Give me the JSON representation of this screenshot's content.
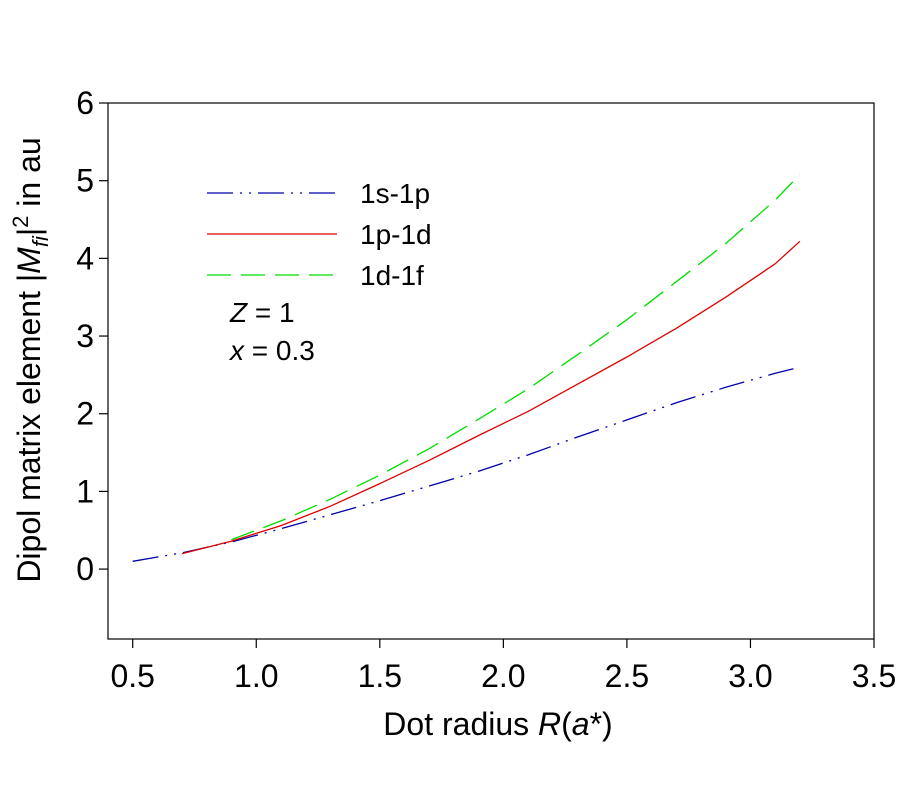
{
  "chart_data": {
    "type": "line",
    "xlabel_prefix": "Dot radius ",
    "xlabel_var": "R",
    "xlabel_paren_open": "(",
    "xlabel_unit_var": "a",
    "xlabel_suffix": "*)",
    "ylabel_prefix": "Dipol matrix element |",
    "ylabel_var": "M",
    "ylabel_sub": "fi",
    "ylabel_bar": "|",
    "ylabel_sup": "2",
    "ylabel_suffix": " in au",
    "xlim": [
      0.4,
      3.5
    ],
    "ylim": [
      -0.9,
      6.0
    ],
    "xticks": [
      0.5,
      1.0,
      1.5,
      2.0,
      2.5,
      3.0,
      3.5
    ],
    "xtick_labels": [
      "0.5",
      "1.0",
      "1.5",
      "2.0",
      "2.5",
      "3.0",
      "3.5"
    ],
    "yticks": [
      0,
      1,
      2,
      3,
      4,
      5,
      6
    ],
    "ytick_labels": [
      "0",
      "1",
      "2",
      "3",
      "4",
      "5",
      "6"
    ],
    "grid": false,
    "legend_position": "top-left",
    "series": [
      {
        "name": "1s-1p",
        "color": "#0000aa",
        "dash": "dash-dot-dot",
        "x": [
          0.5,
          0.7,
          0.9,
          1.1,
          1.3,
          1.5,
          1.7,
          1.9,
          2.1,
          2.3,
          2.5,
          2.7,
          2.9,
          3.1,
          3.2
        ],
        "y": [
          0.1,
          0.21,
          0.35,
          0.52,
          0.7,
          0.88,
          1.07,
          1.26,
          1.47,
          1.7,
          1.92,
          2.14,
          2.34,
          2.52,
          2.6
        ]
      },
      {
        "name": "1p-1d",
        "color": "#dd0000",
        "dash": "solid",
        "x": [
          0.7,
          0.9,
          1.1,
          1.3,
          1.5,
          1.7,
          1.9,
          2.1,
          2.3,
          2.5,
          2.7,
          2.9,
          3.1,
          3.2
        ],
        "y": [
          0.2,
          0.36,
          0.56,
          0.81,
          1.1,
          1.4,
          1.72,
          2.03,
          2.38,
          2.73,
          3.1,
          3.5,
          3.93,
          4.22
        ]
      },
      {
        "name": "1d-1f",
        "color": "#00dd00",
        "dash": "long-dash",
        "x": [
          0.9,
          1.1,
          1.3,
          1.5,
          1.7,
          1.9,
          2.1,
          2.3,
          2.5,
          2.7,
          2.9,
          3.1,
          3.2
        ],
        "y": [
          0.38,
          0.62,
          0.9,
          1.21,
          1.55,
          1.93,
          2.32,
          2.76,
          3.21,
          3.7,
          4.19,
          4.75,
          5.08
        ]
      }
    ],
    "annotations": [
      {
        "var": "Z",
        "rest": " = 1"
      },
      {
        "var": "x",
        "rest": " = 0.3"
      }
    ]
  }
}
